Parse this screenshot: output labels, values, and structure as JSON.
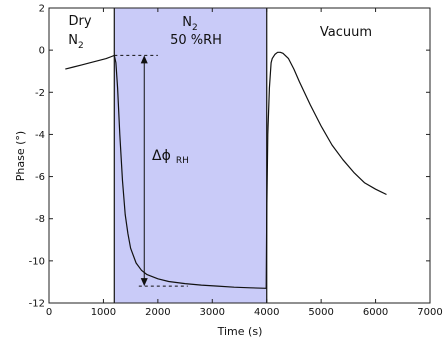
{
  "chart_data": {
    "type": "line",
    "title": "",
    "xlabel": "Time (s)",
    "ylabel": "Phase (°)",
    "xlim": [
      0,
      7000
    ],
    "ylim": [
      -12,
      2
    ],
    "xticks": [
      0,
      1000,
      2000,
      3000,
      4000,
      5000,
      6000,
      7000
    ],
    "yticks": [
      2,
      0,
      -2,
      -4,
      -6,
      -8,
      -10,
      -12
    ],
    "grid": false,
    "colors": {
      "line": "#111111",
      "shade": "#c9cbf8",
      "divider": "#222222"
    },
    "shaded_region": {
      "x_start": 1200,
      "x_end": 4000
    },
    "series": [
      {
        "x": [
          300,
          450,
          600,
          750,
          900,
          1050,
          1150,
          1200,
          1230,
          1260,
          1300,
          1350,
          1400,
          1450,
          1500,
          1600,
          1700,
          1800,
          2000,
          2200,
          2500,
          2800,
          3100,
          3400,
          3700,
          3990,
          4000,
          4020,
          4050,
          4080,
          4100,
          4150,
          4200,
          4250,
          4300,
          4400,
          4500,
          4600,
          4800,
          5000,
          5200,
          5400,
          5600,
          5800,
          6000,
          6200
        ],
        "y": [
          -0.9,
          -0.8,
          -0.7,
          -0.6,
          -0.5,
          -0.4,
          -0.3,
          -0.25,
          -0.6,
          -1.8,
          -4.0,
          -6.2,
          -7.8,
          -8.7,
          -9.4,
          -10.1,
          -10.45,
          -10.65,
          -10.85,
          -10.98,
          -11.08,
          -11.15,
          -11.2,
          -11.25,
          -11.28,
          -11.3,
          -8.0,
          -4.0,
          -1.8,
          -0.6,
          -0.4,
          -0.2,
          -0.1,
          -0.1,
          -0.15,
          -0.4,
          -0.9,
          -1.5,
          -2.6,
          -3.6,
          -4.5,
          -5.2,
          -5.8,
          -6.3,
          -6.6,
          -6.85
        ]
      }
    ],
    "annotations": {
      "dry_label": "Dry",
      "dry_gas": "N",
      "dry_gas_sub": "2",
      "wet_gas": "N",
      "wet_gas_sub": "2",
      "humidity": "50 %RH",
      "vacuum": "Vacuum",
      "delta": "Δϕ",
      "delta_sub": "RH",
      "delta_top_y": -0.25,
      "delta_bottom_y": -11.2,
      "delta_x": 1750,
      "dash_top_from": 1200,
      "dash_top_to": 2000,
      "dash_bottom_from": 1650,
      "dash_bottom_to": 2550
    }
  }
}
